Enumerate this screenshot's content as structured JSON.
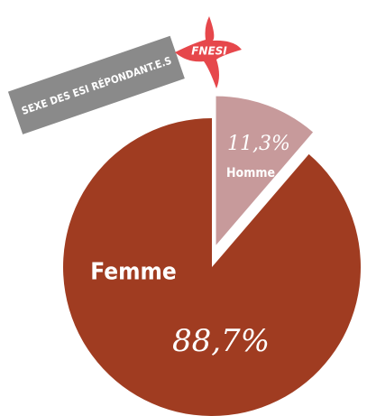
{
  "chart_data": {
    "type": "pie",
    "title": "SEXE DES ESI RÉPONDANT.E.S",
    "logo": "FNESI",
    "categories": [
      "Homme",
      "Femme"
    ],
    "values": [
      11.3,
      88.7
    ],
    "value_labels": [
      "11,3%",
      "88,7%"
    ],
    "colors": [
      "#c79a9b",
      "#a03c21"
    ]
  }
}
